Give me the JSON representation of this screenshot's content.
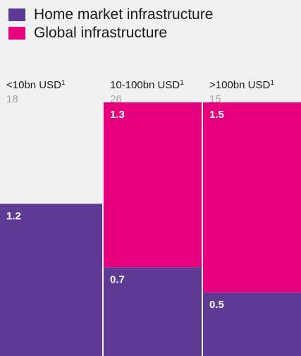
{
  "chart_data": {
    "type": "bar",
    "stacked": true,
    "categories": [
      "<10bn USD",
      "10-100bn USD",
      ">100bn USD"
    ],
    "category_superscripts": [
      "1",
      "1",
      "1"
    ],
    "category_counts": [
      "18",
      "26",
      "15"
    ],
    "series": [
      {
        "name": "Home market infrastructure",
        "values": [
          1.2,
          0.7,
          0.5
        ],
        "labels": [
          "1.2",
          "0.7",
          "0.5"
        ],
        "color": "#5e3a95"
      },
      {
        "name": "Global infrastructure",
        "values": [
          null,
          1.3,
          1.5
        ],
        "labels": [
          "",
          "1.3",
          "1.5"
        ],
        "color": "#e6007e"
      }
    ],
    "ylim": [
      0,
      2.25
    ],
    "background": "#f1f1f1",
    "legend_position": "top-left"
  }
}
